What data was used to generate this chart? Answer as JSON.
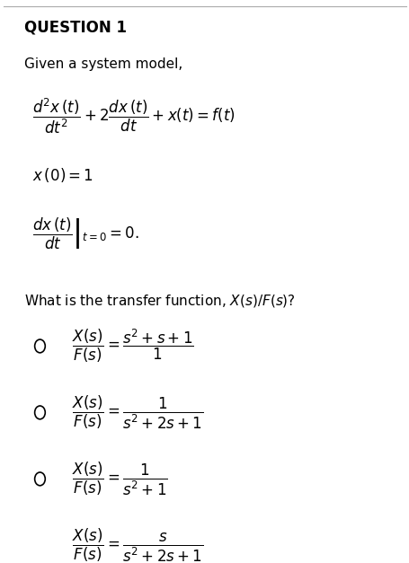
{
  "title": "QUESTION 1",
  "background_color": "#ffffff",
  "text_color": "#000000",
  "figsize": [
    4.56,
    6.27
  ],
  "dpi": 100
}
